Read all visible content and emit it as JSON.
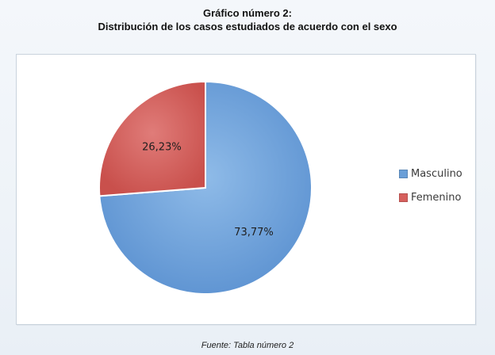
{
  "heading": {
    "title": "Gráfico número 2:",
    "subtitle": "Distribución de los casos estudiados de acuerdo con el sexo"
  },
  "chart_data": {
    "type": "pie",
    "categories": [
      "Masculino",
      "Femenino"
    ],
    "values": [
      73.77,
      26.23
    ],
    "data_labels": [
      "73,77%",
      "26,23%"
    ],
    "colors": [
      "#6a9fd8",
      "#d6605d"
    ],
    "legend_position": "right",
    "start": "top, clockwise"
  },
  "footer": {
    "source": "Fuente: Tabla número 2"
  }
}
